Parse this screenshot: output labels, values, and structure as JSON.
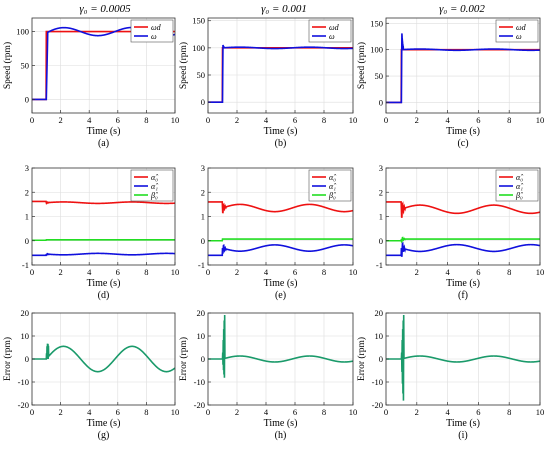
{
  "column_titles": [
    "γ₀ = 0.0005",
    "γ₀ = 0.001",
    "γ₀ = 0.002"
  ],
  "colors": {
    "red": "#ee1111",
    "blue": "#1010dd",
    "green": "#22dd22",
    "teal": "#1a9a6a",
    "grid": "#dddddd"
  },
  "chart_data": [
    {
      "id": "a",
      "type": "line",
      "caption": "(a)",
      "xlabel": "Time (s)",
      "ylabel": "Speed (rpm)",
      "xlim": [
        0,
        10
      ],
      "ylim": [
        -20,
        120
      ],
      "xticks": [
        0,
        2,
        4,
        6,
        8,
        10
      ],
      "yticks": [
        0,
        50,
        100
      ],
      "grid": true,
      "legend": {
        "position": "top-right",
        "labels": [
          "ωd",
          "ω"
        ]
      },
      "series": [
        {
          "name": "ωd",
          "color": "#ee1111",
          "gen": "step",
          "params": {
            "t0": 1,
            "v0": 0,
            "v1": 100
          }
        },
        {
          "name": "ω",
          "color": "#1010dd",
          "gen": "speed",
          "params": {
            "t0": 1,
            "rise": 0.1,
            "base": 100,
            "ramp": 96,
            "amp": 6,
            "period": 4.8,
            "phase": 0,
            "spike": 0
          }
        }
      ]
    },
    {
      "id": "b",
      "type": "line",
      "caption": "(b)",
      "xlabel": "Time (s)",
      "ylabel": "Speed (rpm)",
      "xlim": [
        0,
        10
      ],
      "ylim": [
        -20,
        155
      ],
      "xticks": [
        0,
        2,
        4,
        6,
        8,
        10
      ],
      "yticks": [
        0,
        50,
        100,
        150
      ],
      "grid": true,
      "legend": {
        "position": "top-right",
        "labels": [
          "ωd",
          "ω"
        ]
      },
      "series": [
        {
          "name": "ωd",
          "color": "#ee1111",
          "gen": "step",
          "params": {
            "t0": 1,
            "v0": 0,
            "v1": 100
          }
        },
        {
          "name": "ω",
          "color": "#1010dd",
          "gen": "speed",
          "params": {
            "t0": 1,
            "rise": 0.03,
            "base": 100,
            "ramp": 100,
            "amp": 1.3,
            "period": 4.8,
            "phase": 0,
            "spike": 10
          }
        }
      ]
    },
    {
      "id": "c",
      "type": "line",
      "caption": "(c)",
      "xlabel": "Time (s)",
      "ylabel": "Speed (rpm)",
      "xlim": [
        0,
        10
      ],
      "ylim": [
        -20,
        160
      ],
      "xticks": [
        0,
        2,
        4,
        6,
        8,
        10
      ],
      "yticks": [
        0,
        50,
        100,
        150
      ],
      "grid": true,
      "legend": {
        "position": "top-right",
        "labels": [
          "ωd",
          "ω"
        ]
      },
      "series": [
        {
          "name": "ωd",
          "color": "#ee1111",
          "gen": "step",
          "params": {
            "t0": 1,
            "v0": 0,
            "v1": 100
          }
        },
        {
          "name": "ω",
          "color": "#1010dd",
          "gen": "speed",
          "params": {
            "t0": 1,
            "rise": 0.02,
            "base": 100,
            "ramp": 100,
            "amp": 1.2,
            "period": 4.8,
            "phase": 0,
            "spike": 60
          }
        }
      ]
    },
    {
      "id": "d",
      "type": "line",
      "caption": "(d)",
      "xlabel": "Time (s)",
      "ylabel": "",
      "xlim": [
        0,
        10
      ],
      "ylim": [
        -1,
        3
      ],
      "xticks": [
        0,
        2,
        4,
        6,
        8,
        10
      ],
      "yticks": [
        -1,
        0,
        1,
        2,
        3
      ],
      "grid": true,
      "legend": {
        "position": "top-right",
        "labels": [
          "α̂₀",
          "α̂₁",
          "β̂₀"
        ]
      },
      "series": [
        {
          "name": "α̂₀",
          "color": "#ee1111",
          "gen": "param",
          "params": {
            "v0": 1.62,
            "v1": 1.57,
            "amp": 0.03,
            "period": 4.8,
            "phase": 0,
            "jump": 0.05
          }
        },
        {
          "name": "α̂₁",
          "color": "#1010dd",
          "gen": "param",
          "params": {
            "v0": -0.6,
            "v1": -0.55,
            "amp": 0.03,
            "period": 4.8,
            "phase": 3.14,
            "jump": 0.05
          }
        },
        {
          "name": "β̂₀",
          "color": "#22dd22",
          "gen": "param",
          "params": {
            "v0": 0.02,
            "v1": 0.04,
            "amp": 0.0,
            "period": 4.8,
            "phase": 0,
            "jump": 0
          }
        }
      ]
    },
    {
      "id": "e",
      "type": "line",
      "caption": "(e)",
      "xlabel": "Time (s)",
      "ylabel": "",
      "xlim": [
        0,
        10
      ],
      "ylim": [
        -1,
        3
      ],
      "xticks": [
        0,
        2,
        4,
        6,
        8,
        10
      ],
      "yticks": [
        -1,
        0,
        1,
        2,
        3
      ],
      "grid": true,
      "legend": {
        "position": "top-right",
        "labels": [
          "α̂₀",
          "α̂₁",
          "β̂₀"
        ]
      },
      "series": [
        {
          "name": "α̂₀",
          "color": "#ee1111",
          "gen": "param",
          "params": {
            "v0": 1.6,
            "v1": 1.35,
            "amp": 0.15,
            "period": 4.8,
            "phase": 0,
            "jump": 0.3
          }
        },
        {
          "name": "α̂₁",
          "color": "#1010dd",
          "gen": "param",
          "params": {
            "v0": -0.6,
            "v1": -0.3,
            "amp": 0.13,
            "period": 4.8,
            "phase": 3.14,
            "jump": 0.3
          }
        },
        {
          "name": "β̂₀",
          "color": "#22dd22",
          "gen": "param",
          "params": {
            "v0": 0.0,
            "v1": 0.07,
            "amp": 0.0,
            "period": 4.8,
            "phase": 0,
            "jump": 0
          }
        }
      ]
    },
    {
      "id": "f",
      "type": "line",
      "caption": "(f)",
      "xlabel": "Time (s)",
      "ylabel": "",
      "xlim": [
        0,
        10
      ],
      "ylim": [
        -1,
        3
      ],
      "xticks": [
        2,
        4,
        6,
        8,
        10
      ],
      "yticks": [
        -1,
        0,
        1,
        2,
        3
      ],
      "grid": true,
      "legend": {
        "position": "top-right",
        "labels": [
          "α̂₀",
          "α̂₁",
          "β̂₀"
        ]
      },
      "series": [
        {
          "name": "α̂₀",
          "color": "#ee1111",
          "gen": "param",
          "params": {
            "v0": 1.6,
            "v1": 1.3,
            "amp": 0.17,
            "period": 4.8,
            "phase": 0,
            "jump": 0.5
          }
        },
        {
          "name": "α̂₁",
          "color": "#1010dd",
          "gen": "param",
          "params": {
            "v0": -0.6,
            "v1": -0.3,
            "amp": 0.14,
            "period": 4.8,
            "phase": 3.14,
            "jump": 0.5
          }
        },
        {
          "name": "β̂₀",
          "color": "#22dd22",
          "gen": "param",
          "params": {
            "v0": 0.0,
            "v1": 0.07,
            "amp": 0.0,
            "period": 4.8,
            "phase": 0,
            "jump": 0.15
          }
        }
      ]
    },
    {
      "id": "g",
      "type": "line",
      "caption": "(g)",
      "xlabel": "Time (s)",
      "ylabel": "Error (rpm)",
      "xlim": [
        0,
        10
      ],
      "ylim": [
        -20,
        20
      ],
      "xticks": [
        0,
        2,
        4,
        6,
        8,
        10
      ],
      "yticks": [
        -20,
        -10,
        0,
        10,
        20
      ],
      "grid": true,
      "legend": null,
      "series": [
        {
          "name": "",
          "color": "#1a9a6a",
          "gen": "error",
          "params": {
            "amp": 5.5,
            "period": 4.8,
            "phase": 0,
            "spike": 20,
            "spikeNeg": 0
          }
        }
      ]
    },
    {
      "id": "h",
      "type": "line",
      "caption": "(h)",
      "xlabel": "Time (s)",
      "ylabel": "Error (rpm)",
      "xlim": [
        0,
        10
      ],
      "ylim": [
        -20,
        20
      ],
      "xticks": [
        0,
        2,
        4,
        6,
        8,
        10
      ],
      "yticks": [
        -20,
        -10,
        0,
        10,
        20
      ],
      "grid": true,
      "legend": null,
      "series": [
        {
          "name": "",
          "color": "#1a9a6a",
          "gen": "error",
          "params": {
            "amp": 1.3,
            "period": 4.8,
            "phase": 0,
            "spike": 20,
            "spikeNeg": -9
          }
        }
      ]
    },
    {
      "id": "i",
      "type": "line",
      "caption": "(i)",
      "xlabel": "Time (s)",
      "ylabel": "Error (rpm)",
      "xlim": [
        0,
        10
      ],
      "ylim": [
        -20,
        20
      ],
      "xticks": [
        0,
        2,
        4,
        6,
        8,
        10
      ],
      "yticks": [
        -20,
        -10,
        0,
        10,
        20
      ],
      "grid": true,
      "legend": null,
      "series": [
        {
          "name": "",
          "color": "#1a9a6a",
          "gen": "error",
          "params": {
            "amp": 1.3,
            "period": 4.8,
            "phase": 0,
            "spike": 20,
            "spikeNeg": -20
          }
        }
      ]
    }
  ]
}
